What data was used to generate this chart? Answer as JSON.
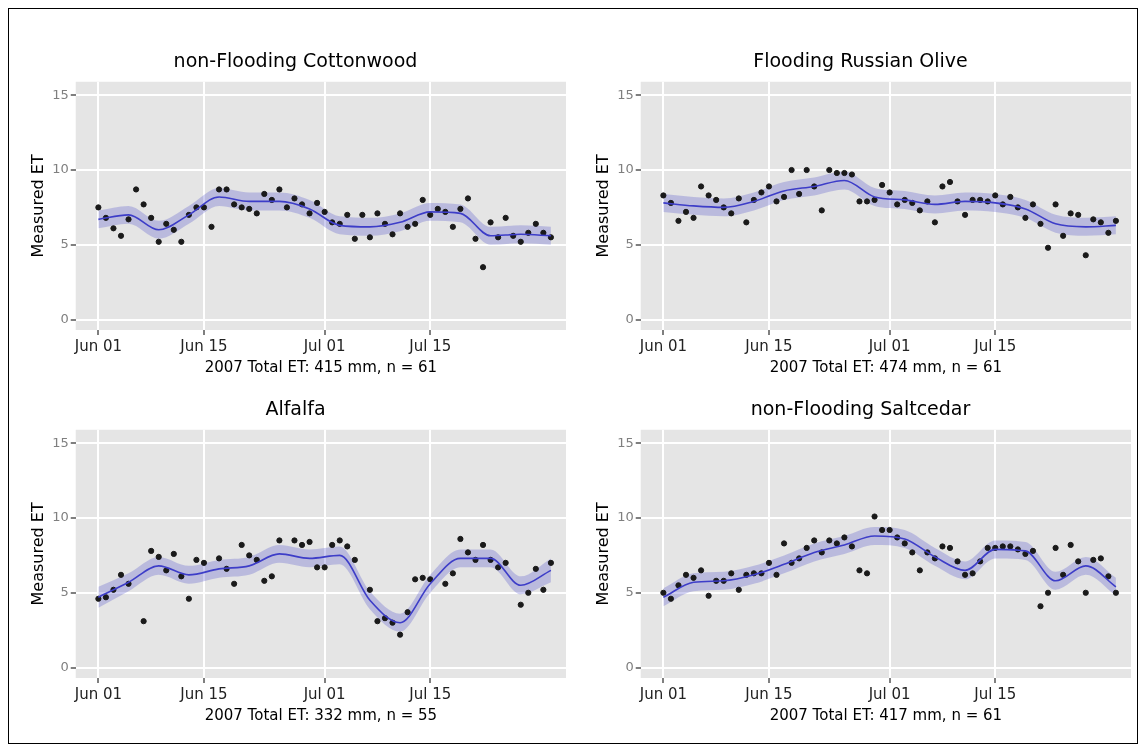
{
  "chart_data": [
    {
      "type": "scatter",
      "title": "non-Flooding Cottonwood",
      "xlabel": "2007 Total ET: 415 mm, n = 61",
      "ylabel": "Measured ET",
      "x": [
        "--06-01",
        "--06-02",
        "--06-03",
        "--06-04",
        "--06-05",
        "--06-06",
        "--06-07",
        "--06-08",
        "--06-09",
        "--06-10",
        "--06-11",
        "--06-12",
        "--06-13",
        "--06-14",
        "--06-15",
        "--06-16",
        "--06-17",
        "--06-18",
        "--06-19",
        "--06-20",
        "--06-21",
        "--06-22",
        "--06-23",
        "--06-24",
        "--06-25",
        "--06-26",
        "--06-27",
        "--06-28",
        "--06-29",
        "--06-30",
        "--07-01",
        "--07-02",
        "--07-03",
        "--07-04",
        "--07-05",
        "--07-06",
        "--07-07",
        "--07-08",
        "--07-09",
        "--07-10",
        "--07-11",
        "--07-12",
        "--07-13",
        "--07-14",
        "--07-15",
        "--07-16",
        "--07-17",
        "--07-18",
        "--07-19",
        "--07-20",
        "--07-21",
        "--07-22",
        "--07-23",
        "--07-24",
        "--07-25",
        "--07-26",
        "--07-27",
        "--07-28",
        "--07-29",
        "--07-30",
        "--07-31"
      ],
      "series": [
        {
          "type": "line",
          "color": "#3d3dc8",
          "x": [
            "--06-01",
            "--06-05",
            "--06-09",
            "--06-13",
            "--06-17",
            "--06-21",
            "--06-25",
            "--06-29",
            "--07-03",
            "--07-07",
            "--07-11",
            "--07-15",
            "--07-19",
            "--07-23",
            "--07-27",
            "--07-31"
          ],
          "values": [
            6.7,
            7.0,
            6.0,
            7.0,
            8.2,
            7.9,
            7.9,
            7.4,
            6.3,
            6.2,
            6.5,
            7.2,
            7.1,
            5.6,
            5.7,
            5.6
          ],
          "lower": [
            6.1,
            6.4,
            5.4,
            6.4,
            7.6,
            7.3,
            7.3,
            6.8,
            5.7,
            5.6,
            5.9,
            6.6,
            6.5,
            5.0,
            5.1,
            5.0
          ],
          "upper": [
            7.3,
            7.6,
            6.6,
            7.6,
            8.8,
            8.5,
            8.5,
            8.0,
            6.9,
            6.8,
            7.1,
            7.8,
            7.7,
            6.2,
            6.3,
            6.2
          ]
        },
        {
          "marker": "circle",
          "color": "#1a1a1a",
          "values": [
            7.5,
            6.8,
            6.1,
            5.6,
            6.7,
            8.7,
            7.7,
            6.8,
            5.2,
            6.4,
            6.0,
            5.2,
            7.0,
            7.5,
            7.5,
            6.2,
            8.7,
            8.7,
            7.7,
            7.5,
            7.4,
            7.1,
            8.4,
            8.0,
            8.7,
            7.5,
            8.1,
            7.7,
            7.1,
            7.8,
            7.2,
            6.5,
            6.4,
            7.0,
            5.4,
            7.0,
            5.5,
            7.1,
            6.4,
            5.7,
            7.1,
            6.2,
            6.4,
            8.0,
            7.0,
            7.4,
            7.2,
            6.2,
            7.4,
            8.1,
            5.4,
            3.5,
            6.5,
            5.5,
            6.8,
            5.6,
            5.2,
            5.8,
            6.4,
            5.8,
            5.5
          ]
        }
      ],
      "xlim": [
        "--05-29",
        "--08-02"
      ],
      "xticks": [
        {
          "value": "--06-01",
          "label": "Jun 01"
        },
        {
          "value": "--06-15",
          "label": "Jun 15"
        },
        {
          "value": "--07-01",
          "label": "Jul 01"
        },
        {
          "value": "--07-15",
          "label": "Jul 15"
        }
      ],
      "ylim": [
        -0.7,
        15.9
      ],
      "yticks": [
        0,
        5,
        10,
        15
      ],
      "grid": true,
      "legend": false
    },
    {
      "type": "scatter",
      "title": "Flooding Russian Olive",
      "xlabel": "2007 Total ET: 474 mm, n = 61",
      "ylabel": "Measured ET",
      "x": [
        "--06-01",
        "--06-02",
        "--06-03",
        "--06-04",
        "--06-05",
        "--06-06",
        "--06-07",
        "--06-08",
        "--06-09",
        "--06-10",
        "--06-11",
        "--06-12",
        "--06-13",
        "--06-14",
        "--06-15",
        "--06-16",
        "--06-17",
        "--06-18",
        "--06-19",
        "--06-20",
        "--06-21",
        "--06-22",
        "--06-23",
        "--06-24",
        "--06-25",
        "--06-26",
        "--06-27",
        "--06-28",
        "--06-29",
        "--06-30",
        "--07-01",
        "--07-02",
        "--07-03",
        "--07-04",
        "--07-05",
        "--07-06",
        "--07-07",
        "--07-08",
        "--07-09",
        "--07-10",
        "--07-11",
        "--07-12",
        "--07-13",
        "--07-14",
        "--07-15",
        "--07-16",
        "--07-17",
        "--07-18",
        "--07-19",
        "--07-20",
        "--07-21",
        "--07-22",
        "--07-23",
        "--07-24",
        "--07-25",
        "--07-26",
        "--07-27",
        "--07-28",
        "--07-29",
        "--07-30",
        "--07-31"
      ],
      "series": [
        {
          "type": "line",
          "color": "#3d3dc8",
          "x": [
            "--06-01",
            "--06-05",
            "--06-09",
            "--06-13",
            "--06-17",
            "--06-21",
            "--06-25",
            "--06-29",
            "--07-03",
            "--07-07",
            "--07-11",
            "--07-15",
            "--07-19",
            "--07-23",
            "--07-27",
            "--07-31"
          ],
          "values": [
            7.8,
            7.6,
            7.5,
            7.9,
            8.6,
            8.9,
            9.3,
            8.2,
            8.0,
            7.7,
            7.9,
            7.8,
            7.4,
            6.4,
            6.2,
            6.3
          ],
          "lower": [
            7.2,
            7.0,
            6.9,
            7.3,
            8.0,
            8.3,
            8.7,
            7.6,
            7.4,
            7.1,
            7.3,
            7.2,
            6.8,
            5.8,
            5.6,
            5.7
          ],
          "upper": [
            8.4,
            8.2,
            8.1,
            8.5,
            9.2,
            9.5,
            9.9,
            8.8,
            8.6,
            8.3,
            8.5,
            8.4,
            8.0,
            7.0,
            6.8,
            6.9
          ]
        },
        {
          "marker": "circle",
          "color": "#1a1a1a",
          "values": [
            8.3,
            7.8,
            6.6,
            7.2,
            6.8,
            8.9,
            8.3,
            8.0,
            7.5,
            7.1,
            8.1,
            6.5,
            8.0,
            8.5,
            8.9,
            7.9,
            8.2,
            10.0,
            8.4,
            10.0,
            8.9,
            7.3,
            10.0,
            9.8,
            9.8,
            9.7,
            7.9,
            7.9,
            8.0,
            9.0,
            8.5,
            7.7,
            8.0,
            7.8,
            7.3,
            7.9,
            6.5,
            8.9,
            9.2,
            7.9,
            7.0,
            8.0,
            8.0,
            7.9,
            8.3,
            7.7,
            8.2,
            7.5,
            6.8,
            7.7,
            6.4,
            4.8,
            7.7,
            5.6,
            7.1,
            7.0,
            4.3,
            6.7,
            6.5,
            5.8,
            6.6
          ]
        }
      ],
      "xlim": [
        "--05-29",
        "--08-02"
      ],
      "xticks": [
        {
          "value": "--06-01",
          "label": "Jun 01"
        },
        {
          "value": "--06-15",
          "label": "Jun 15"
        },
        {
          "value": "--07-01",
          "label": "Jul 01"
        },
        {
          "value": "--07-15",
          "label": "Jul 15"
        }
      ],
      "ylim": [
        -0.7,
        15.9
      ],
      "yticks": [
        0,
        5,
        10,
        15
      ],
      "grid": true,
      "legend": false
    },
    {
      "type": "scatter",
      "title": "Alfalfa",
      "xlabel": "2007 Total ET: 332 mm, n = 55",
      "ylabel": "Measured ET",
      "x": [
        "--06-01",
        "--06-02",
        "--06-03",
        "--06-04",
        "--06-05",
        "--06-06",
        "--06-07",
        "--06-08",
        "--06-09",
        "--06-10",
        "--06-11",
        "--06-12",
        "--06-13",
        "--06-14",
        "--06-15",
        "--06-16",
        "--06-17",
        "--06-18",
        "--06-19",
        "--06-20",
        "--06-21",
        "--06-22",
        "--06-23",
        "--06-24",
        "--06-25",
        "--06-26",
        "--06-27",
        "--06-28",
        "--06-29",
        "--06-30",
        "--07-01",
        "--07-02",
        "--07-03",
        "--07-04",
        "--07-05",
        "--07-06",
        "--07-07",
        "--07-08",
        "--07-09",
        "--07-10",
        "--07-11",
        "--07-12",
        "--07-13",
        "--07-14",
        "--07-15",
        "--07-16",
        "--07-17",
        "--07-18",
        "--07-19",
        "--07-20",
        "--07-21",
        "--07-22",
        "--07-23",
        "--07-24",
        "--07-25",
        "--07-26",
        "--07-27",
        "--07-28",
        "--07-29",
        "--07-30",
        "--07-31"
      ],
      "series": [
        {
          "type": "line",
          "color": "#3d3dc8",
          "x": [
            "--06-01",
            "--06-05",
            "--06-09",
            "--06-13",
            "--06-17",
            "--06-21",
            "--06-25",
            "--06-29",
            "--07-03",
            "--07-07",
            "--07-11",
            "--07-15",
            "--07-19",
            "--07-23",
            "--07-27",
            "--07-31"
          ],
          "values": [
            4.7,
            5.7,
            6.8,
            6.2,
            6.6,
            6.8,
            7.6,
            7.3,
            7.5,
            4.5,
            3.0,
            5.6,
            7.3,
            7.3,
            5.5,
            6.5
          ],
          "lower": [
            4.0,
            5.1,
            6.2,
            5.6,
            6.0,
            6.2,
            7.0,
            6.7,
            6.9,
            3.9,
            2.4,
            5.0,
            6.7,
            6.7,
            4.9,
            5.7
          ],
          "upper": [
            5.4,
            6.3,
            7.4,
            6.8,
            7.2,
            7.4,
            8.2,
            7.9,
            8.1,
            5.1,
            3.6,
            6.2,
            7.9,
            7.9,
            6.1,
            7.3
          ]
        },
        {
          "marker": "circle",
          "color": "#1a1a1a",
          "values": [
            4.6,
            4.7,
            5.2,
            6.2,
            5.6,
            null,
            3.1,
            7.8,
            7.4,
            6.5,
            7.6,
            6.1,
            4.6,
            7.2,
            7.0,
            null,
            7.3,
            6.6,
            5.6,
            8.2,
            7.5,
            7.2,
            5.8,
            6.1,
            8.5,
            null,
            8.5,
            8.2,
            8.4,
            6.7,
            6.7,
            8.2,
            8.5,
            8.1,
            7.2,
            null,
            5.2,
            3.1,
            3.3,
            3.0,
            2.2,
            3.7,
            5.9,
            6.0,
            5.9,
            null,
            5.6,
            6.3,
            8.6,
            7.7,
            7.2,
            8.2,
            7.2,
            6.7,
            7.0,
            null,
            4.2,
            5.0,
            6.6,
            5.2,
            7.0
          ]
        }
      ],
      "xlim": [
        "--05-29",
        "--08-02"
      ],
      "xticks": [
        {
          "value": "--06-01",
          "label": "Jun 01"
        },
        {
          "value": "--06-15",
          "label": "Jun 15"
        },
        {
          "value": "--07-01",
          "label": "Jul 01"
        },
        {
          "value": "--07-15",
          "label": "Jul 15"
        }
      ],
      "ylim": [
        -0.7,
        15.9
      ],
      "yticks": [
        0,
        5,
        10,
        15
      ],
      "grid": true,
      "legend": false
    },
    {
      "type": "scatter",
      "title": "non-Flooding Saltcedar",
      "xlabel": "2007 Total ET: 417 mm, n = 61",
      "ylabel": "Measured ET",
      "x": [
        "--06-01",
        "--06-02",
        "--06-03",
        "--06-04",
        "--06-05",
        "--06-06",
        "--06-07",
        "--06-08",
        "--06-09",
        "--06-10",
        "--06-11",
        "--06-12",
        "--06-13",
        "--06-14",
        "--06-15",
        "--06-16",
        "--06-17",
        "--06-18",
        "--06-19",
        "--06-20",
        "--06-21",
        "--06-22",
        "--06-23",
        "--06-24",
        "--06-25",
        "--06-26",
        "--06-27",
        "--06-28",
        "--06-29",
        "--06-30",
        "--07-01",
        "--07-02",
        "--07-03",
        "--07-04",
        "--07-05",
        "--07-06",
        "--07-07",
        "--07-08",
        "--07-09",
        "--07-10",
        "--07-11",
        "--07-12",
        "--07-13",
        "--07-14",
        "--07-15",
        "--07-16",
        "--07-17",
        "--07-18",
        "--07-19",
        "--07-20",
        "--07-21",
        "--07-22",
        "--07-23",
        "--07-24",
        "--07-25",
        "--07-26",
        "--07-27",
        "--07-28",
        "--07-29",
        "--07-30",
        "--07-31"
      ],
      "series": [
        {
          "type": "line",
          "color": "#3d3dc8",
          "x": [
            "--06-01",
            "--06-05",
            "--06-09",
            "--06-13",
            "--06-17",
            "--06-21",
            "--06-25",
            "--06-29",
            "--07-03",
            "--07-07",
            "--07-11",
            "--07-15",
            "--07-19",
            "--07-23",
            "--07-27",
            "--07-31"
          ],
          "values": [
            4.7,
            5.7,
            5.8,
            6.2,
            6.9,
            7.7,
            8.2,
            8.8,
            8.6,
            7.4,
            6.5,
            7.9,
            7.8,
            5.8,
            6.8,
            5.4
          ],
          "lower": [
            4.1,
            5.1,
            5.2,
            5.6,
            6.3,
            7.1,
            7.6,
            8.2,
            8.0,
            6.8,
            5.9,
            7.3,
            7.2,
            5.2,
            6.2,
            4.8
          ],
          "upper": [
            5.3,
            6.3,
            6.4,
            6.8,
            7.5,
            8.3,
            8.8,
            9.4,
            9.2,
            8.0,
            7.1,
            8.5,
            8.4,
            6.4,
            7.4,
            6.0
          ]
        },
        {
          "marker": "circle",
          "color": "#1a1a1a",
          "values": [
            5.0,
            4.6,
            5.5,
            6.2,
            6.0,
            6.5,
            4.8,
            5.8,
            5.8,
            6.3,
            5.2,
            6.2,
            6.3,
            6.3,
            7.0,
            6.2,
            8.3,
            7.0,
            7.3,
            8.0,
            8.5,
            7.7,
            8.5,
            8.3,
            8.7,
            8.1,
            6.5,
            6.3,
            10.1,
            9.2,
            9.2,
            8.7,
            8.3,
            7.7,
            6.5,
            7.7,
            7.3,
            8.1,
            8.0,
            7.1,
            6.2,
            6.3,
            7.1,
            8.0,
            8.0,
            8.1,
            8.1,
            7.9,
            7.6,
            7.8,
            4.1,
            5.0,
            8.0,
            6.2,
            8.2,
            7.1,
            5.0,
            7.2,
            7.3,
            6.1,
            5.0
          ]
        }
      ],
      "xlim": [
        "--05-29",
        "--08-02"
      ],
      "xticks": [
        {
          "value": "--06-01",
          "label": "Jun 01"
        },
        {
          "value": "--06-15",
          "label": "Jun 15"
        },
        {
          "value": "--07-01",
          "label": "Jul 01"
        },
        {
          "value": "--07-15",
          "label": "Jul 15"
        }
      ],
      "ylim": [
        -0.7,
        15.9
      ],
      "yticks": [
        0,
        5,
        10,
        15
      ],
      "grid": true,
      "legend": false
    }
  ]
}
